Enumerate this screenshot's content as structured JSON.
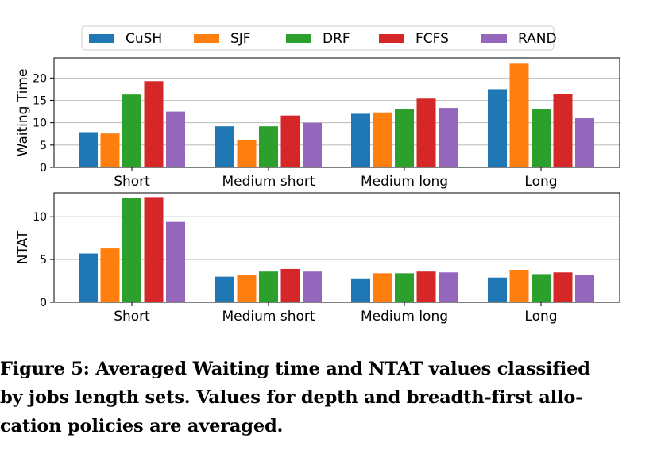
{
  "chart_data": {
    "type": "bar",
    "categories": [
      "Short",
      "Medium short",
      "Medium long",
      "Long"
    ],
    "legend": {
      "placement": "top",
      "entries": [
        "CuSH",
        "SJF",
        "DRF",
        "FCFS",
        "RAND"
      ]
    },
    "colors": [
      "#1f77b4",
      "#ff7f0e",
      "#2ca02c",
      "#d62728",
      "#9467bd"
    ],
    "panels": [
      {
        "ylabel": "Waiting Time",
        "ylim": [
          0,
          24.5
        ],
        "yticks": [
          0,
          5,
          10,
          15,
          20
        ],
        "grid": true,
        "series": [
          {
            "name": "CuSH",
            "values": [
              7.9,
              9.2,
              12.0,
              17.5
            ]
          },
          {
            "name": "SJF",
            "values": [
              7.6,
              6.1,
              12.3,
              23.2
            ]
          },
          {
            "name": "DRF",
            "values": [
              16.3,
              9.2,
              13.0,
              13.0
            ]
          },
          {
            "name": "FCFS",
            "values": [
              19.3,
              11.6,
              15.4,
              16.4
            ]
          },
          {
            "name": "RAND",
            "values": [
              12.5,
              10.0,
              13.3,
              11.0
            ]
          }
        ]
      },
      {
        "ylabel": "NTAT",
        "ylim": [
          0,
          12.8
        ],
        "yticks": [
          0,
          5,
          10
        ],
        "grid": true,
        "series": [
          {
            "name": "CuSH",
            "values": [
              5.7,
              3.0,
              2.8,
              2.9
            ]
          },
          {
            "name": "SJF",
            "values": [
              6.3,
              3.2,
              3.4,
              3.8
            ]
          },
          {
            "name": "DRF",
            "values": [
              12.2,
              3.6,
              3.4,
              3.3
            ]
          },
          {
            "name": "FCFS",
            "values": [
              12.3,
              3.9,
              3.6,
              3.5
            ]
          },
          {
            "name": "RAND",
            "values": [
              9.4,
              3.6,
              3.5,
              3.2
            ]
          }
        ]
      }
    ]
  },
  "caption": {
    "lines": [
      "Figure 5: Averaged Waiting time and NTAT values classified",
      "by jobs length sets. Values for depth and breadth-first allo-",
      "cation policies are averaged."
    ]
  }
}
